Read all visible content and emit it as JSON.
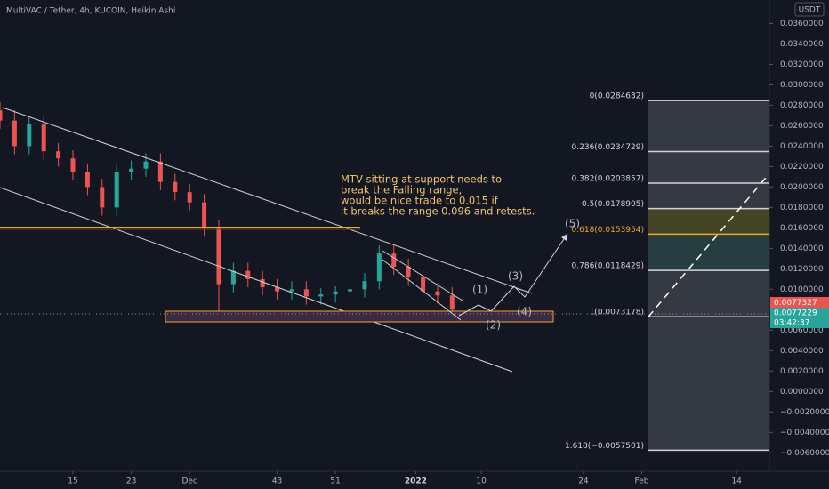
{
  "header": "MultiVAC / Tether, 4h, KUCOIN, Heikin Ashi",
  "currency": "USDT",
  "chart_data": {
    "type": "candlestick",
    "x": [
      5,
      7,
      9,
      11,
      13,
      15,
      17,
      19,
      21,
      23,
      25,
      27,
      29,
      31,
      33,
      35,
      37,
      39,
      41,
      43,
      45,
      47,
      49,
      51,
      53,
      55,
      57,
      59,
      61,
      63,
      65,
      67
    ],
    "open": [
      0.0275,
      0.0265,
      0.024,
      0.0262,
      0.0235,
      0.0228,
      0.0215,
      0.02,
      0.018,
      0.0215,
      0.0218,
      0.0225,
      0.0205,
      0.0195,
      0.0185,
      0.016,
      0.0105,
      0.0118,
      0.011,
      0.0102,
      0.0098,
      0.01,
      0.0093,
      0.0095,
      0.0098,
      0.01,
      0.0108,
      0.0135,
      0.0122,
      0.0112,
      0.0098,
      0.0094
    ],
    "high": [
      0.0283,
      0.0275,
      0.027,
      0.027,
      0.0243,
      0.0236,
      0.0223,
      0.0208,
      0.0223,
      0.0226,
      0.0233,
      0.0233,
      0.0213,
      0.0203,
      0.0193,
      0.0168,
      0.0126,
      0.0126,
      0.0118,
      0.011,
      0.0108,
      0.0108,
      0.0101,
      0.0103,
      0.0106,
      0.0116,
      0.0143,
      0.0143,
      0.013,
      0.012,
      0.0106,
      0.0102
    ],
    "low": [
      0.0257,
      0.0232,
      0.0232,
      0.0227,
      0.022,
      0.0207,
      0.0192,
      0.0172,
      0.0172,
      0.0207,
      0.021,
      0.0197,
      0.0187,
      0.0177,
      0.0152,
      0.0078,
      0.0097,
      0.0102,
      0.0094,
      0.009,
      0.009,
      0.0085,
      0.0085,
      0.0087,
      0.009,
      0.0092,
      0.01,
      0.0114,
      0.0104,
      0.009,
      0.0086,
      0.0072
    ],
    "close": [
      0.0265,
      0.024,
      0.0262,
      0.0235,
      0.0228,
      0.0215,
      0.02,
      0.018,
      0.0215,
      0.0218,
      0.0225,
      0.0205,
      0.0195,
      0.0185,
      0.016,
      0.0105,
      0.0118,
      0.011,
      0.0102,
      0.0098,
      0.01,
      0.0093,
      0.0095,
      0.0098,
      0.01,
      0.0108,
      0.0135,
      0.0122,
      0.0112,
      0.0098,
      0.0094,
      0.008
    ],
    "up_color": "#26a69a",
    "down_color": "#ef5350",
    "xlim": [
      5,
      110.5
    ],
    "xticks": [
      15,
      23,
      {
        "value": 31,
        "label": "Dec"
      },
      43,
      51,
      {
        "value": 62,
        "label": "2022"
      },
      {
        "value": 71,
        "label": "10"
      },
      {
        "value": 85,
        "label": "24"
      },
      {
        "value": 93,
        "label": "Feb"
      },
      {
        "value": 106,
        "label": "14"
      }
    ],
    "ylim": [
      -0.0078,
      0.0383
    ],
    "yticks": [
      {
        "value": 0.036,
        "label": "0.0360000"
      },
      {
        "value": 0.034,
        "label": "0.0340000"
      },
      {
        "value": 0.032,
        "label": "0.0320000"
      },
      {
        "value": 0.03,
        "label": "0.0300000"
      },
      {
        "value": 0.028,
        "label": "0.0280000"
      },
      {
        "value": 0.026,
        "label": "0.0260000"
      },
      {
        "value": 0.024,
        "label": "0.0240000"
      },
      {
        "value": 0.022,
        "label": "0.0220000"
      },
      {
        "value": 0.02,
        "label": "0.0200000"
      },
      {
        "value": 0.018,
        "label": "0.0180000"
      },
      {
        "value": 0.016,
        "label": "0.0160000"
      },
      {
        "value": 0.014,
        "label": "0.0140000"
      },
      {
        "value": 0.012,
        "label": "0.0120000"
      },
      {
        "value": 0.01,
        "label": "0.0100000"
      },
      {
        "value": 0.006,
        "label": "0.0060000"
      },
      {
        "value": 0.004,
        "label": "0.0040000"
      },
      {
        "value": 0.002,
        "label": "0.0020000"
      },
      {
        "value": 0,
        "label": "0.0000000"
      },
      {
        "value": -0.002,
        "label": "−0.0020000"
      },
      {
        "value": -0.004,
        "label": "−0.0040000"
      },
      {
        "value": -0.006,
        "label": "−0.0060000"
      }
    ]
  },
  "fib_levels": [
    {
      "value": 0.0284632,
      "label": "0(0.0284632)",
      "color": "#d1d4dc"
    },
    {
      "value": 0.0234729,
      "label": "0.236(0.0234729)",
      "color": "#d1d4dc"
    },
    {
      "value": 0.0203857,
      "label": "0.382(0.0203857)",
      "color": "#d1d4dc"
    },
    {
      "value": 0.0178905,
      "label": "0.5(0.0178905)",
      "color": "#d1d4dc"
    },
    {
      "value": 0.0153954,
      "label": "0.618(0.0153954)",
      "color": "#f5a623"
    },
    {
      "value": 0.0118429,
      "label": "0.786(0.0118429)",
      "color": "#d1d4dc"
    },
    {
      "value": 0.0073178,
      "label": "1(0.0073178)",
      "color": "#d1d4dc"
    },
    {
      "value": -0.0057501,
      "label": "1.618(−0.0057501)",
      "color": "#d1d4dc"
    }
  ],
  "annotation": [
    "MTV sitting at support needs to",
    "break the Falling range,",
    "would be nice trade to 0.015 if",
    "it breaks the range 0.096 and retests."
  ],
  "waves": [
    "(1)",
    "(2)",
    "(3)",
    "(4)",
    "(5)"
  ],
  "price_badges": {
    "last": "0.0077327",
    "bid": "0.0077229",
    "countdown": "03:42:37"
  }
}
